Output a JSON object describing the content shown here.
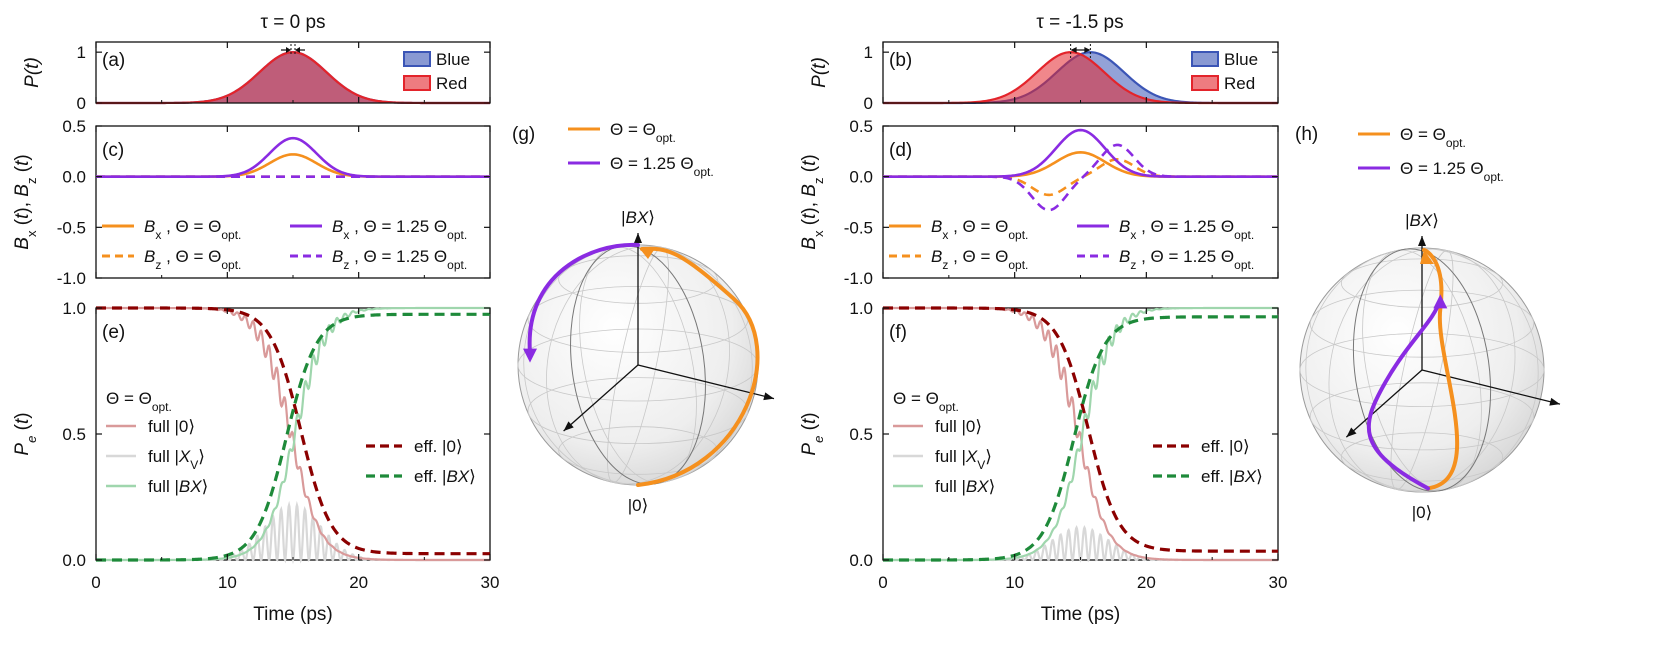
{
  "chart_data": {
    "type": "line",
    "columns": [
      {
        "id": "left",
        "title": "τ = 0 ps",
        "tau_ps": 0,
        "pulse_panel": {
          "label": "(a)",
          "ylabel": "P(t)",
          "ylim": [
            0,
            1.2
          ],
          "yticks": [
            0,
            1
          ],
          "legend": [
            "Blue",
            "Red"
          ],
          "series": [
            {
              "name": "Blue",
              "color": "#3b55b6",
              "center_ps": 15.0,
              "fwhm_ps": 6.0,
              "amplitude": 1.0
            },
            {
              "name": "Red",
              "color": "#e3242b",
              "center_ps": 15.0,
              "fwhm_ps": 6.0,
              "amplitude": 1.0
            }
          ]
        },
        "field_panel": {
          "label": "(c)",
          "ylabel": "Bx (t), Bz (t)",
          "ylim": [
            -1.0,
            0.5
          ],
          "yticks": [
            "-1.0",
            "-0.5",
            "0.0",
            "0.5"
          ],
          "legend": [
            {
              "key": "Bx",
              "theta": "Θ = Θopt.",
              "style": "solid",
              "color": "#f5901e"
            },
            {
              "key": "Bz",
              "theta": "Θ = Θopt.",
              "style": "dashed",
              "color": "#f5901e"
            },
            {
              "key": "Bx",
              "theta": "Θ = 1.25 Θopt.",
              "style": "solid",
              "color": "#8a2be2"
            },
            {
              "key": "Bz",
              "theta": "Θ = 1.25 Θopt.",
              "style": "dashed",
              "color": "#8a2be2"
            }
          ],
          "series": [
            {
              "name": "Bx, Θ = Θopt.",
              "color": "#f5901e",
              "style": "solid",
              "peak": 0.22,
              "center_ps": 15.0,
              "width_ps": 4.2
            },
            {
              "name": "Bz, Θ = Θopt.",
              "color": "#f5901e",
              "style": "dashed",
              "peak": 0.0
            },
            {
              "name": "Bx, Θ = 1.25 Θopt.",
              "color": "#8a2be2",
              "style": "solid",
              "peak": 0.38,
              "center_ps": 15.0,
              "width_ps": 4.2
            },
            {
              "name": "Bz, Θ = 1.25 Θopt.",
              "color": "#8a2be2",
              "style": "dashed",
              "peak": 0.0
            }
          ]
        },
        "population_panel": {
          "label": "(e)",
          "ylabel": "Pe (t)",
          "xlabel": "Time (ps)",
          "xlim": [
            0,
            30
          ],
          "xticks": [
            "0",
            "10",
            "20",
            "30"
          ],
          "ylim": [
            0,
            1
          ],
          "yticks": [
            "0.0",
            "0.5",
            "1.0"
          ],
          "theta_label": "Θ = Θopt.",
          "legend_full": [
            "full |0⟩",
            "full |XV⟩",
            "full |BX⟩"
          ],
          "legend_eff": [
            "eff. |0⟩",
            "eff. |BX⟩"
          ],
          "series": [
            {
              "name": "full |0⟩",
              "color": "#d99a9a",
              "final": 0.0
            },
            {
              "name": "full |XV⟩",
              "color": "#d8d8d8",
              "max": 0.22
            },
            {
              "name": "full |BX⟩",
              "color": "#9fd6ad",
              "final": 1.0
            },
            {
              "name": "eff. |0⟩",
              "color": "#8b0000",
              "final": 0.025
            },
            {
              "name": "eff. |BX⟩",
              "color": "#1e8a3a",
              "final": 0.975
            }
          ]
        },
        "bloch": {
          "label": "(g)",
          "top_state": "|BX⟩",
          "bottom_state": "|0⟩",
          "legend": [
            "Θ = Θopt.",
            "Θ = 1.25 Θopt."
          ]
        }
      },
      {
        "id": "right",
        "title": "τ = -1.5 ps",
        "tau_ps": -1.5,
        "pulse_panel": {
          "label": "(b)",
          "ylabel": "P(t)",
          "ylim": [
            0,
            1.2
          ],
          "yticks": [
            0,
            1
          ],
          "legend": [
            "Blue",
            "Red"
          ],
          "series": [
            {
              "name": "Blue",
              "color": "#3b55b6",
              "center_ps": 15.75,
              "fwhm_ps": 6.0,
              "amplitude": 1.0
            },
            {
              "name": "Red",
              "color": "#e3242b",
              "center_ps": 14.25,
              "fwhm_ps": 6.0,
              "amplitude": 1.0
            }
          ]
        },
        "field_panel": {
          "label": "(d)",
          "ylabel": "Bx (t), Bz (t)",
          "ylim": [
            -1.0,
            0.5
          ],
          "yticks": [
            "-1.0",
            "-0.5",
            "0.0",
            "0.5"
          ],
          "legend": [
            {
              "key": "Bx",
              "theta": "Θ = Θopt.",
              "style": "solid",
              "color": "#f5901e"
            },
            {
              "key": "Bz",
              "theta": "Θ = Θopt.",
              "style": "dashed",
              "color": "#f5901e"
            },
            {
              "key": "Bx",
              "theta": "Θ = 1.25 Θopt.",
              "style": "solid",
              "color": "#8a2be2"
            },
            {
              "key": "Bz",
              "theta": "Θ = 1.25 Θopt.",
              "style": "dashed",
              "color": "#8a2be2"
            }
          ],
          "series": [
            {
              "name": "Bx, Θ = Θopt.",
              "color": "#f5901e",
              "style": "solid",
              "peak": 0.24,
              "center_ps": 15.0,
              "width_ps": 4.4
            },
            {
              "name": "Bz, Θ = Θopt.",
              "color": "#f5901e",
              "style": "dashed",
              "peak": -0.18,
              "center_ps": 15.0,
              "width_ps": 3.0
            },
            {
              "name": "Bx, Θ = 1.25 Θopt.",
              "color": "#8a2be2",
              "style": "solid",
              "peak": 0.46,
              "center_ps": 15.0,
              "width_ps": 4.4
            },
            {
              "name": "Bz, Θ = 1.25 Θopt.",
              "color": "#8a2be2",
              "style": "dashed",
              "peak": -0.33,
              "center_ps": 15.0,
              "width_ps": 3.0
            }
          ]
        },
        "population_panel": {
          "label": "(f)",
          "ylabel": "Pe (t)",
          "xlabel": "Time (ps)",
          "xlim": [
            0,
            30
          ],
          "xticks": [
            "0",
            "10",
            "20",
            "30"
          ],
          "ylim": [
            0,
            1
          ],
          "yticks": [
            "0.0",
            "0.5",
            "1.0"
          ],
          "theta_label": "Θ = Θopt.",
          "legend_full": [
            "full |0⟩",
            "full |XV⟩",
            "full |BX⟩"
          ],
          "legend_eff": [
            "eff. |0⟩",
            "eff. |BX⟩"
          ],
          "series": [
            {
              "name": "full |0⟩",
              "color": "#d99a9a",
              "final": 0.0
            },
            {
              "name": "full |XV⟩",
              "color": "#d8d8d8",
              "max": 0.13
            },
            {
              "name": "full |BX⟩",
              "color": "#9fd6ad",
              "final": 1.0
            },
            {
              "name": "eff. |0⟩",
              "color": "#8b0000",
              "final": 0.035
            },
            {
              "name": "eff. |BX⟩",
              "color": "#1e8a3a",
              "final": 0.965
            }
          ]
        },
        "bloch": {
          "label": "(h)",
          "top_state": "|BX⟩",
          "bottom_state": "|0⟩",
          "legend": [
            "Θ = Θopt.",
            "Θ = 1.25 Θopt."
          ]
        }
      }
    ]
  }
}
